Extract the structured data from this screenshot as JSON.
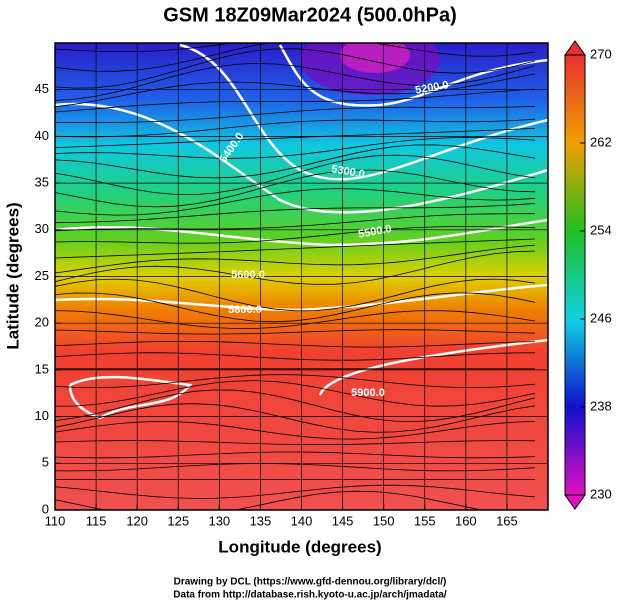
{
  "chart_data": {
    "type": "field",
    "title": "GSM 18Z09Mar2024 (500.0hPa)",
    "x_label": "Longitude (degrees)",
    "y_label": "Latitude  (degrees)",
    "xlim": [
      110,
      170
    ],
    "xticks": [
      110,
      115,
      120,
      125,
      130,
      135,
      140,
      145,
      150,
      155,
      160,
      165
    ],
    "ylim": [
      0,
      50
    ],
    "yticks": [
      0,
      5,
      10,
      15,
      20,
      25,
      30,
      35,
      40,
      45
    ],
    "grid": true,
    "colorbar": {
      "lim": [
        230,
        270
      ],
      "ticks": [
        230,
        238,
        246,
        254,
        262,
        270
      ],
      "colors": [
        "#e010c0",
        "#1010d0",
        "#10d0e0",
        "#20c020",
        "#f0a000",
        "#e83030"
      ]
    },
    "contour_labels": [
      "5200.0",
      "5300.0",
      "5400.0",
      "5500.0",
      "5600.0",
      "5800.0",
      "5900.0"
    ],
    "footer": [
      "Drawing by DCL (https://www.gfd-dennou.org/library/dcl/)",
      "Data from http://database.rish.kyoto-u.ac.jp/arch/jmadata/"
    ]
  }
}
